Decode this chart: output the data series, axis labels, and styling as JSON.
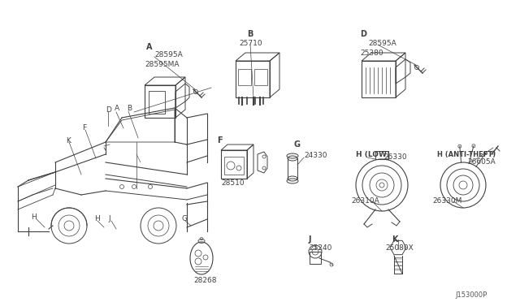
{
  "bg_color": "#ffffff",
  "diagram_code": "J153000P",
  "lc": "#404040",
  "tc": "#404040",
  "parts": {
    "A_label": "A",
    "A_part1": "28595A",
    "A_part2": "28595MA",
    "B_label": "B",
    "B_part": "25710",
    "D_label": "D",
    "D_part1": "28595A",
    "D_part2": "25380",
    "F_label": "F",
    "F_part": "28510",
    "G_label": "G",
    "G_part": "24330",
    "H_low_label": "H (LOW)",
    "H_low_part1": "26330",
    "H_low_part2": "26310A",
    "H_anti_label": "H (ANTI-THEFT)",
    "H_anti_part1": "26605A",
    "H_anti_part2": "26330M",
    "J_label": "J",
    "J_part": "25240",
    "K_label": "K",
    "K_part": "25080X",
    "keyfob_part": "28268"
  }
}
